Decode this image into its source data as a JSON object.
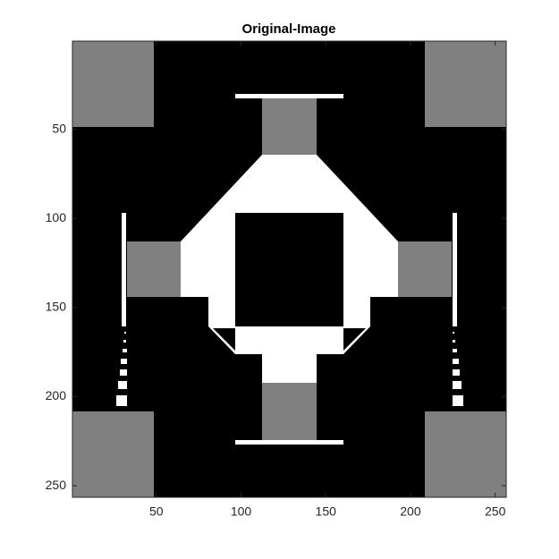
{
  "chart_data": {
    "type": "image",
    "title": "Original-Image",
    "xlim": [
      0.5,
      256.5
    ],
    "ylim": [
      0.5,
      256.5
    ],
    "xticks": [
      50,
      100,
      150,
      200,
      250
    ],
    "yticks": [
      50,
      100,
      150,
      200,
      250
    ]
  }
}
